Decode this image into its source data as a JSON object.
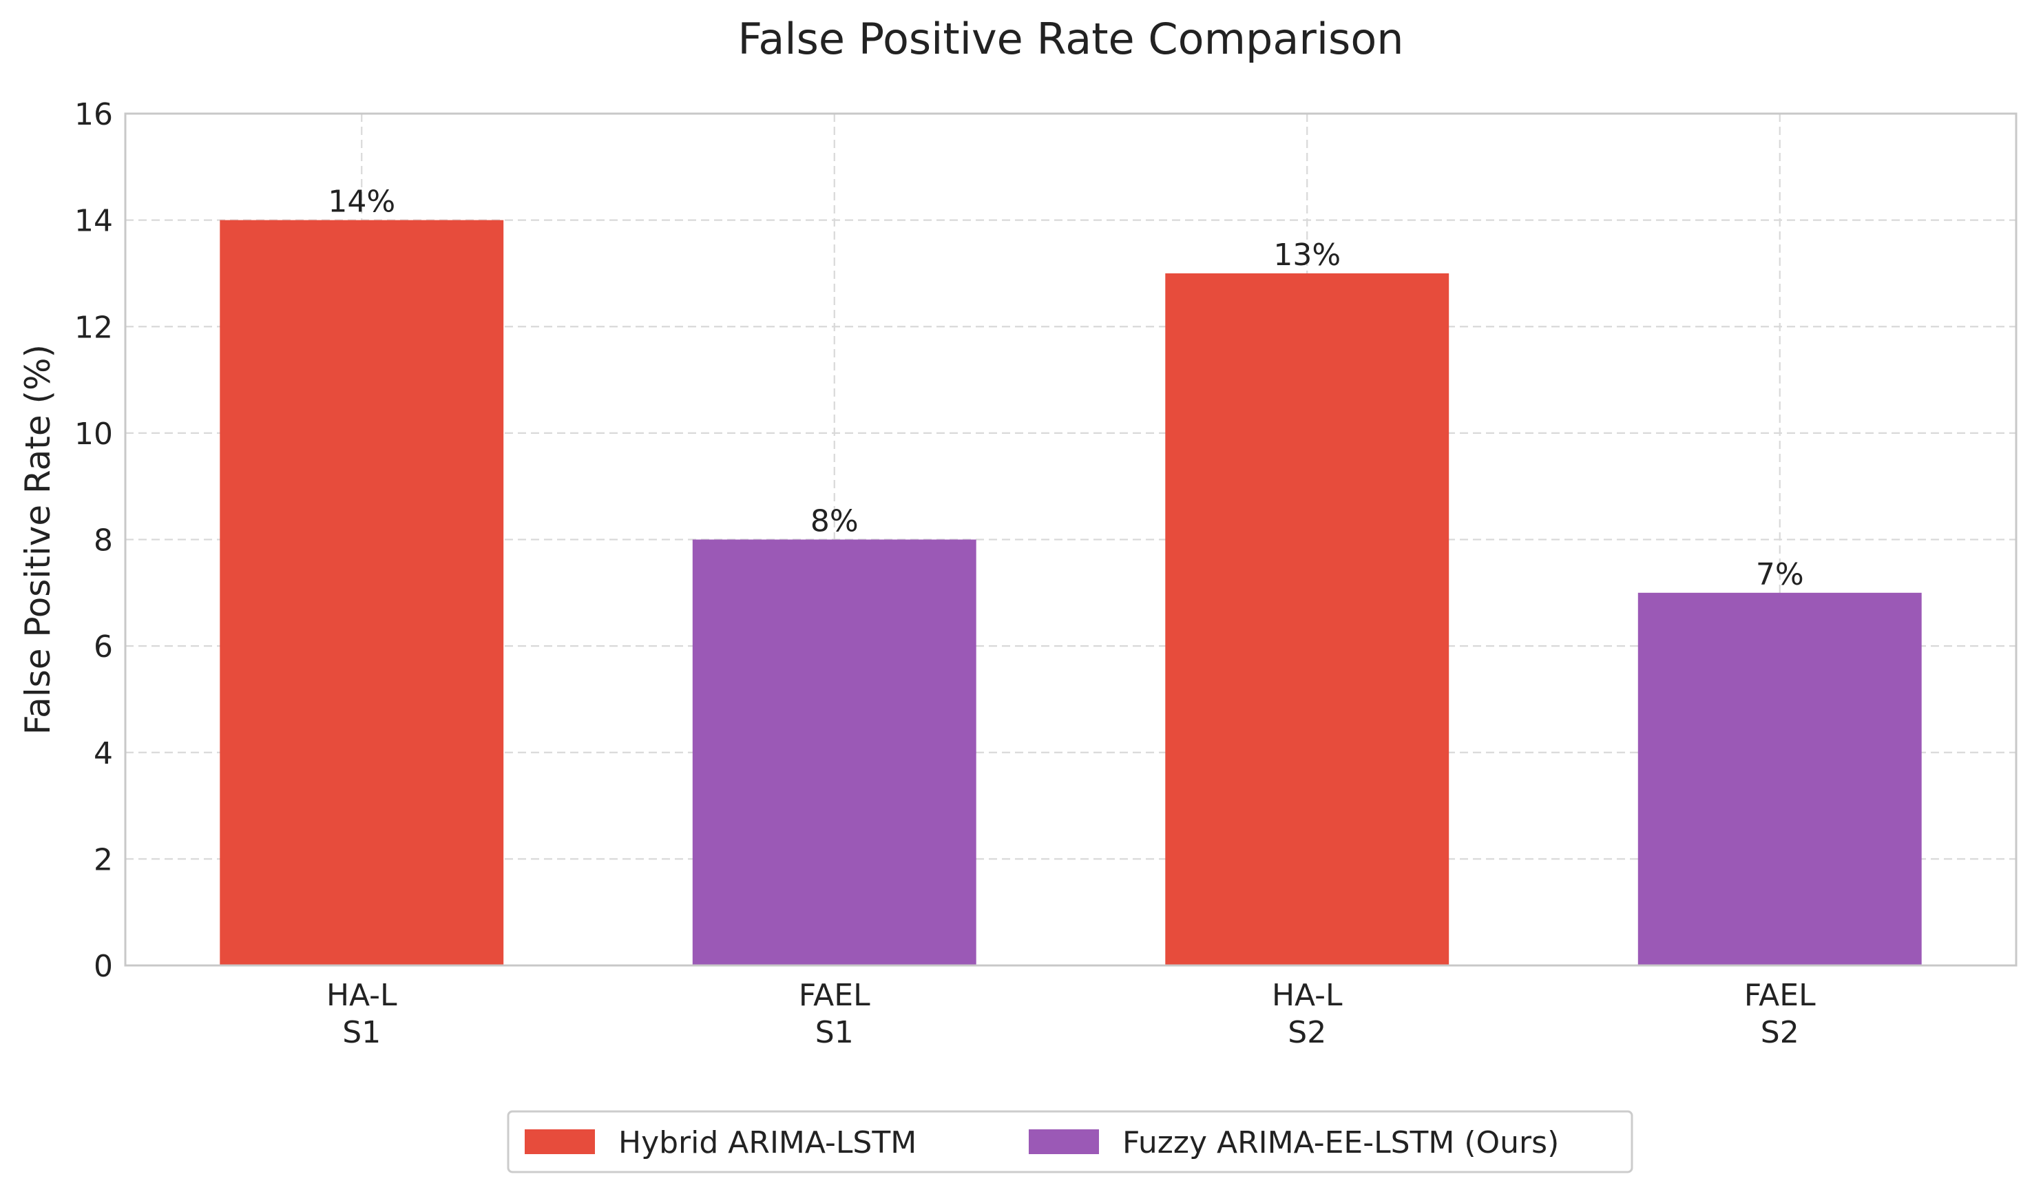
{
  "chart_data": {
    "type": "bar",
    "title": "False Positive Rate Comparison",
    "xlabel": "",
    "ylabel": "False Positive Rate (%)",
    "ylim": [
      0,
      16
    ],
    "yticks": [
      0,
      2,
      4,
      6,
      8,
      10,
      12,
      14,
      16
    ],
    "grid": true,
    "legend_position": "bottom-center",
    "categories": [
      [
        "HA-L",
        "S1"
      ],
      [
        "FAEL",
        "S1"
      ],
      [
        "HA-L",
        "S2"
      ],
      [
        "FAEL",
        "S2"
      ]
    ],
    "values": [
      14,
      8,
      13,
      7
    ],
    "value_labels": [
      "14%",
      "8%",
      "13%",
      "7%"
    ],
    "bar_series": [
      0,
      1,
      0,
      1
    ],
    "series": [
      {
        "name": "Hybrid ARIMA-LSTM",
        "color": "#E74C3C"
      },
      {
        "name": "Fuzzy ARIMA-EE-LSTM (Ours)",
        "color": "#9B59B6"
      }
    ]
  }
}
